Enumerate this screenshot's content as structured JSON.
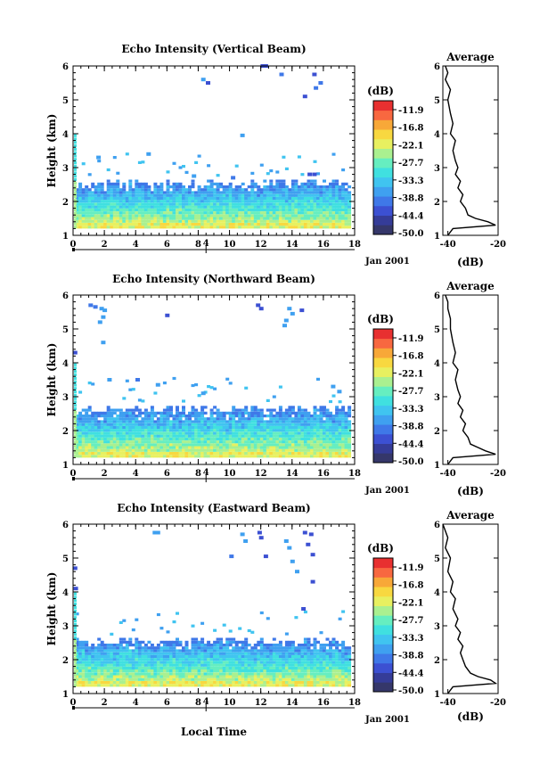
{
  "colors": {
    "scale": [
      "#35376a",
      "#353c98",
      "#3c50d2",
      "#3f78e8",
      "#3fa0f0",
      "#40c4f0",
      "#40e0e0",
      "#66eec0",
      "#aaf090",
      "#e8f060",
      "#f8d840",
      "#f8a838",
      "#f86840",
      "#e83030"
    ]
  },
  "colorbar": {
    "unit_label": "(dB)",
    "tick_labels": [
      "-11.9",
      "-16.8",
      "-22.1",
      "-27.7",
      "-33.3",
      "-38.8",
      "-44.4",
      "-50.0"
    ]
  },
  "shared": {
    "x_ticks": [
      "0",
      "2",
      "4",
      "6",
      "8",
      "10",
      "12",
      "14",
      "16",
      "18"
    ],
    "y_ticks": [
      "1",
      "2",
      "3",
      "4",
      "5",
      "6"
    ],
    "ylabel": "Height (km)",
    "date_label": "Jan 2001",
    "date_ticks": [
      "4"
    ],
    "avg_title": "Average",
    "avg_xlabel": "(dB)",
    "avg_x_ticks": [
      "-40",
      "-20"
    ],
    "xlabel": "Local Time"
  },
  "chart_data": [
    {
      "type": "heatmap",
      "title": "Echo Intensity (Vertical Beam)",
      "xlabel": "",
      "ylabel": "Height (km)",
      "xlim": [
        0,
        18
      ],
      "ylim": [
        1,
        6
      ],
      "cloud_top_km": 2.5,
      "sparse_echoes": [
        [
          8.3,
          5.6
        ],
        [
          8.6,
          5.5
        ],
        [
          12.1,
          6.0
        ],
        [
          12.3,
          6.0
        ],
        [
          13.3,
          5.75
        ],
        [
          15.4,
          5.75
        ],
        [
          15.8,
          5.5
        ],
        [
          15.5,
          5.35
        ],
        [
          14.8,
          5.1
        ],
        [
          10.8,
          3.95
        ],
        [
          4.8,
          3.4
        ],
        [
          1.6,
          3.3
        ],
        [
          7.7,
          2.75
        ],
        [
          10.2,
          2.7
        ],
        [
          15.1,
          2.8
        ],
        [
          15.4,
          2.8
        ]
      ],
      "average_profile": {
        "x_label": "(dB)",
        "xlim": [
          -42,
          -20
        ],
        "heights": [
          1.0,
          1.2,
          1.3,
          1.4,
          1.5,
          1.6,
          1.8,
          2.0,
          2.2,
          2.4,
          2.6,
          2.8,
          3.0,
          3.2,
          3.5,
          3.8,
          4.0,
          4.3,
          4.6,
          5.0,
          5.3,
          5.6,
          5.8,
          6.0
        ],
        "values": [
          -40,
          -38,
          -21,
          -24,
          -29,
          -32,
          -33,
          -35,
          -34,
          -36,
          -35,
          -37,
          -36,
          -37,
          -38,
          -37,
          -39,
          -38,
          -39,
          -40,
          -39,
          -41,
          -40,
          -41
        ]
      }
    },
    {
      "type": "heatmap",
      "title": "Echo Intensity (Northward Beam)",
      "xlabel": "",
      "ylabel": "Height (km)",
      "xlim": [
        0,
        18
      ],
      "ylim": [
        1,
        6
      ],
      "cloud_top_km": 2.6,
      "sparse_echoes": [
        [
          1.1,
          5.7
        ],
        [
          1.4,
          5.65
        ],
        [
          1.8,
          5.6
        ],
        [
          2.0,
          5.55
        ],
        [
          1.9,
          5.35
        ],
        [
          1.7,
          5.2
        ],
        [
          6.0,
          5.4
        ],
        [
          11.8,
          5.7
        ],
        [
          12.0,
          5.6
        ],
        [
          13.8,
          5.6
        ],
        [
          14.0,
          5.45
        ],
        [
          14.6,
          5.55
        ],
        [
          13.6,
          5.25
        ],
        [
          13.5,
          5.1
        ],
        [
          1.9,
          4.6
        ],
        [
          0.1,
          4.3
        ],
        [
          2.3,
          3.5
        ],
        [
          4.1,
          3.5
        ],
        [
          5.4,
          3.35
        ],
        [
          8.3,
          3.1
        ],
        [
          16.6,
          3.3
        ],
        [
          17.0,
          3.15
        ]
      ],
      "average_profile": {
        "x_label": "(dB)",
        "xlim": [
          -42,
          -20
        ],
        "heights": [
          1.0,
          1.2,
          1.3,
          1.4,
          1.5,
          1.6,
          1.8,
          2.0,
          2.2,
          2.4,
          2.6,
          2.8,
          3.0,
          3.2,
          3.5,
          3.8,
          4.0,
          4.3,
          4.6,
          5.0,
          5.3,
          5.6,
          5.8,
          6.0
        ],
        "values": [
          -40,
          -38,
          -21,
          -25,
          -28,
          -31,
          -32,
          -34,
          -33,
          -35,
          -34,
          -36,
          -35,
          -36,
          -37,
          -36,
          -38,
          -37,
          -38,
          -39,
          -39,
          -40,
          -40,
          -41
        ]
      }
    },
    {
      "type": "heatmap",
      "title": "Echo Intensity (Eastward Beam)",
      "xlabel": "Local Time",
      "ylabel": "Height (km)",
      "xlim": [
        0,
        18
      ],
      "ylim": [
        1,
        6
      ],
      "cloud_top_km": 2.5,
      "sparse_echoes": [
        [
          5.2,
          5.75
        ],
        [
          5.4,
          5.75
        ],
        [
          10.8,
          5.7
        ],
        [
          11.0,
          5.5
        ],
        [
          11.9,
          5.75
        ],
        [
          12.0,
          5.6
        ],
        [
          12.3,
          5.05
        ],
        [
          10.1,
          5.05
        ],
        [
          13.6,
          5.5
        ],
        [
          13.8,
          5.3
        ],
        [
          14.8,
          5.75
        ],
        [
          15.2,
          5.7
        ],
        [
          15.0,
          5.4
        ],
        [
          15.3,
          5.1
        ],
        [
          14.0,
          4.9
        ],
        [
          14.3,
          4.6
        ],
        [
          15.3,
          4.3
        ],
        [
          14.7,
          3.5
        ],
        [
          0.1,
          4.7
        ],
        [
          0.15,
          4.1
        ]
      ],
      "average_profile": {
        "x_label": "(dB)",
        "xlim": [
          -42,
          -20
        ],
        "heights": [
          1.0,
          1.2,
          1.3,
          1.4,
          1.5,
          1.6,
          1.8,
          2.0,
          2.2,
          2.4,
          2.6,
          2.8,
          3.0,
          3.2,
          3.5,
          3.8,
          4.0,
          4.3,
          4.6,
          5.0,
          5.3,
          5.6,
          5.8,
          6.0
        ],
        "values": [
          -40,
          -38,
          -21,
          -23,
          -28,
          -31,
          -33,
          -34,
          -35,
          -34,
          -36,
          -35,
          -37,
          -36,
          -38,
          -37,
          -39,
          -38,
          -40,
          -39,
          -41,
          -40,
          -41,
          -42
        ]
      }
    }
  ]
}
